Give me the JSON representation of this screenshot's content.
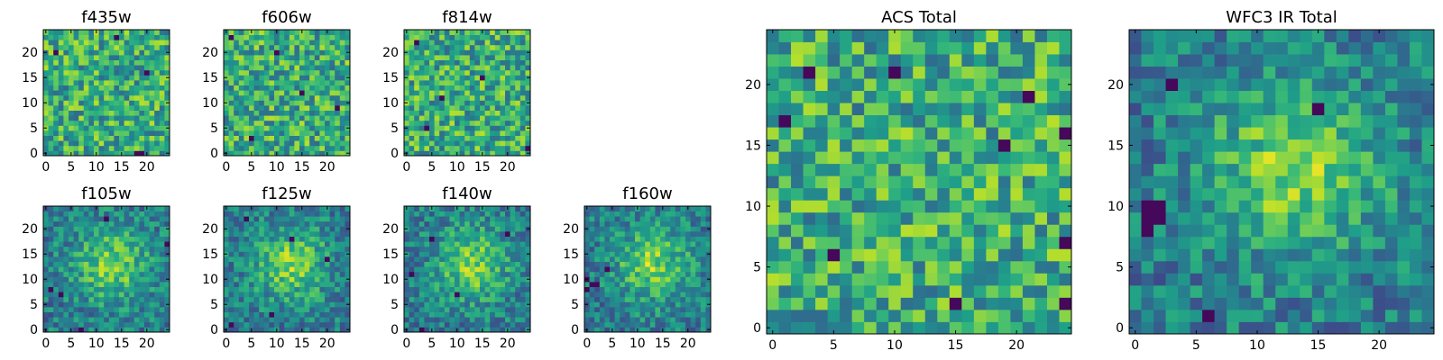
{
  "chart_data": [
    {
      "type": "heatmap",
      "title": "f435w",
      "xticks": [
        "0",
        "5",
        "10",
        "15",
        "20"
      ],
      "yticks": [
        "0",
        "5",
        "10",
        "15",
        "20"
      ],
      "xlim": [
        -0.5,
        24.5
      ],
      "ylim": [
        -0.5,
        24.5
      ],
      "grid_size": 25,
      "colormap": "viridis",
      "pattern": "noise",
      "seed": 11,
      "dark_spots": [
        [
          2,
          20
        ],
        [
          19,
          0
        ],
        [
          18,
          0
        ],
        [
          14,
          23
        ],
        [
          20,
          16
        ]
      ]
    },
    {
      "type": "heatmap",
      "title": "f606w",
      "xticks": [
        "0",
        "5",
        "10",
        "15",
        "20"
      ],
      "yticks": [
        "0",
        "5",
        "10",
        "15",
        "20"
      ],
      "xlim": [
        -0.5,
        24.5
      ],
      "ylim": [
        -0.5,
        24.5
      ],
      "grid_size": 25,
      "colormap": "viridis",
      "pattern": "noise",
      "seed": 23,
      "dark_spots": [
        [
          1,
          23
        ],
        [
          5,
          3
        ],
        [
          10,
          20
        ],
        [
          15,
          12
        ],
        [
          22,
          9
        ]
      ]
    },
    {
      "type": "heatmap",
      "title": "f814w",
      "xticks": [
        "0",
        "5",
        "10",
        "15",
        "20"
      ],
      "yticks": [
        "0",
        "5",
        "10",
        "15",
        "20"
      ],
      "xlim": [
        -0.5,
        24.5
      ],
      "ylim": [
        -0.5,
        24.5
      ],
      "grid_size": 25,
      "colormap": "viridis",
      "pattern": "noise",
      "seed": 37,
      "dark_spots": [
        [
          2,
          22
        ],
        [
          7,
          11
        ],
        [
          15,
          15
        ],
        [
          24,
          1
        ],
        [
          4,
          5
        ]
      ]
    },
    {
      "type": "heatmap",
      "title": "f105w",
      "xticks": [
        "0",
        "5",
        "10",
        "15",
        "20"
      ],
      "yticks": [
        "0",
        "5",
        "10",
        "15",
        "20"
      ],
      "xlim": [
        -0.5,
        24.5
      ],
      "ylim": [
        -0.5,
        24.5
      ],
      "grid_size": 25,
      "colormap": "viridis",
      "pattern": "blob",
      "seed": 41,
      "dark_spots": [
        [
          1,
          8
        ],
        [
          3,
          7
        ],
        [
          24,
          17
        ],
        [
          12,
          22
        ],
        [
          7,
          0
        ]
      ]
    },
    {
      "type": "heatmap",
      "title": "f125w",
      "xticks": [
        "0",
        "5",
        "10",
        "15",
        "20"
      ],
      "yticks": [
        "0",
        "5",
        "10",
        "15",
        "20"
      ],
      "xlim": [
        -0.5,
        24.5
      ],
      "ylim": [
        -0.5,
        24.5
      ],
      "grid_size": 25,
      "colormap": "viridis",
      "pattern": "blob",
      "seed": 53,
      "dark_spots": [
        [
          9,
          3
        ],
        [
          4,
          22
        ],
        [
          20,
          14
        ],
        [
          13,
          18
        ],
        [
          1,
          1
        ]
      ]
    },
    {
      "type": "heatmap",
      "title": "f140w",
      "xticks": [
        "0",
        "5",
        "10",
        "15",
        "20"
      ],
      "yticks": [
        "0",
        "5",
        "10",
        "15",
        "20"
      ],
      "xlim": [
        -0.5,
        24.5
      ],
      "ylim": [
        -0.5,
        24.5
      ],
      "grid_size": 25,
      "colormap": "viridis",
      "pattern": "blob",
      "seed": 67,
      "dark_spots": [
        [
          1,
          11
        ],
        [
          5,
          18
        ],
        [
          10,
          7
        ],
        [
          20,
          19
        ],
        [
          3,
          0
        ]
      ]
    },
    {
      "type": "heatmap",
      "title": "f160w",
      "xticks": [
        "0",
        "5",
        "10",
        "15",
        "20"
      ],
      "yticks": [
        "0",
        "5",
        "10",
        "15",
        "20"
      ],
      "xlim": [
        -0.5,
        24.5
      ],
      "ylim": [
        -0.5,
        24.5
      ],
      "grid_size": 25,
      "colormap": "viridis",
      "pattern": "blob",
      "seed": 79,
      "dark_spots": [
        [
          0,
          10
        ],
        [
          1,
          9
        ],
        [
          2,
          9
        ],
        [
          0,
          8
        ],
        [
          4,
          12
        ]
      ]
    },
    {
      "type": "heatmap",
      "title": "ACS Total",
      "xticks": [
        "0",
        "5",
        "10",
        "15",
        "20"
      ],
      "yticks": [
        "0",
        "5",
        "10",
        "15",
        "20"
      ],
      "xlim": [
        -0.5,
        24.5
      ],
      "ylim": [
        -0.5,
        24.5
      ],
      "grid_size": 25,
      "colormap": "viridis",
      "pattern": "noise",
      "seed": 97,
      "dark_spots": [
        [
          3,
          21
        ],
        [
          1,
          17
        ],
        [
          21,
          19
        ],
        [
          24,
          16
        ],
        [
          10,
          21
        ],
        [
          5,
          6
        ],
        [
          15,
          2
        ],
        [
          24,
          2
        ],
        [
          24,
          7
        ],
        [
          19,
          15
        ]
      ]
    },
    {
      "type": "heatmap",
      "title": "WFC3 IR Total",
      "xticks": [
        "0",
        "5",
        "10",
        "15",
        "20"
      ],
      "yticks": [
        "0",
        "5",
        "10",
        "15",
        "20"
      ],
      "xlim": [
        -0.5,
        24.5
      ],
      "ylim": [
        -0.5,
        24.5
      ],
      "grid_size": 25,
      "colormap": "viridis",
      "pattern": "blob",
      "seed": 113,
      "dark_spots": [
        [
          1,
          10
        ],
        [
          2,
          10
        ],
        [
          1,
          9
        ],
        [
          2,
          9
        ],
        [
          1,
          8
        ],
        [
          15,
          18
        ],
        [
          3,
          20
        ],
        [
          6,
          1
        ]
      ]
    }
  ]
}
